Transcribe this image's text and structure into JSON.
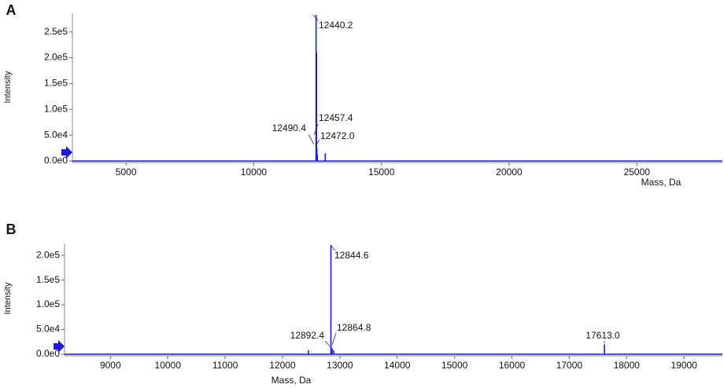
{
  "chart_data": [
    {
      "type": "stem",
      "panel": "A",
      "ylabel": "Intensity",
      "xlabel": "Mass, Da",
      "x": [
        12440.2,
        12457.4,
        12472.0,
        12490.4,
        12800
      ],
      "values": [
        283000,
        210000,
        25000,
        12000,
        15000
      ],
      "annotations": [
        "12440.2",
        "12457.4",
        "12472.0",
        "12490.4",
        null
      ],
      "color": "#1a1ad8",
      "xlim": [
        2900,
        28350
      ],
      "xticks": [
        5000,
        10000,
        15000,
        20000,
        25000
      ],
      "ylim": [
        0,
        286000
      ],
      "yticks": [
        {
          "value": 0,
          "label": "0.0e0"
        },
        {
          "value": 50000,
          "label": "5.0e4"
        },
        {
          "value": 100000,
          "label": "1.0e5"
        },
        {
          "value": 150000,
          "label": "1.5e5"
        },
        {
          "value": 200000,
          "label": "2.0e5"
        },
        {
          "value": 250000,
          "label": "2.5e5"
        }
      ]
    },
    {
      "type": "stem",
      "panel": "B",
      "ylabel": "Intensity",
      "xlabel": "Mass, Da",
      "x": [
        12450,
        12844.6,
        12864.8,
        12892.4,
        17613.0
      ],
      "values": [
        8000,
        221000,
        12000,
        8000,
        20000
      ],
      "annotations": [
        null,
        "12844.6",
        "12864.8",
        "12892.4",
        "17613.0"
      ],
      "color": "#1a1ad8",
      "xlim": [
        8200,
        19670
      ],
      "xticks": [
        9000,
        10000,
        11000,
        12000,
        13000,
        14000,
        15000,
        16000,
        17000,
        18000,
        19000
      ],
      "ylim": [
        0,
        224000
      ],
      "yticks": [
        {
          "value": 0,
          "label": "0.0e0"
        },
        {
          "value": 50000,
          "label": "5.0e4"
        },
        {
          "value": 100000,
          "label": "1.0e5"
        },
        {
          "value": 150000,
          "label": "1.5e5"
        },
        {
          "value": 200000,
          "label": "2.0e5"
        }
      ]
    }
  ]
}
